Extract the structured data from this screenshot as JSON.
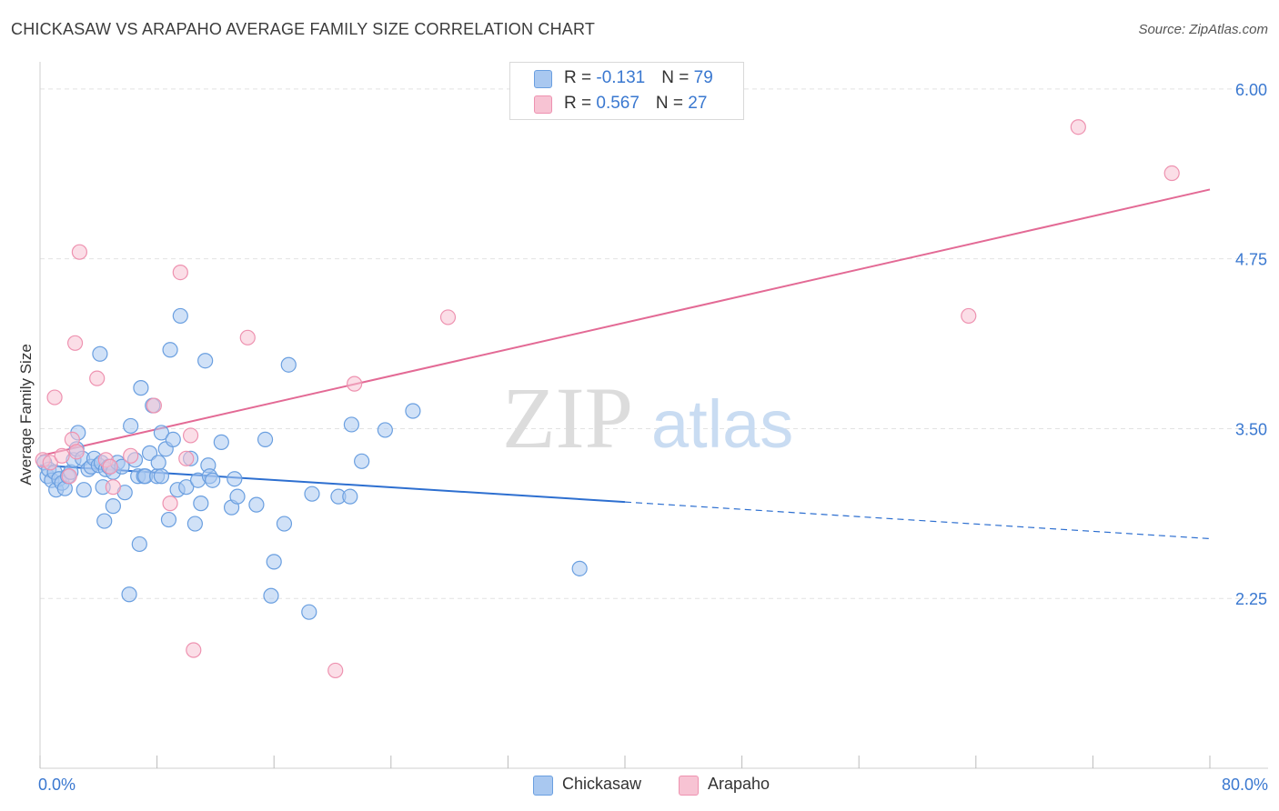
{
  "title": "CHICKASAW VS ARAPAHO AVERAGE FAMILY SIZE CORRELATION CHART",
  "source": "Source: ZipAtlas.com",
  "watermark": {
    "zip": "ZIP",
    "atlas": "atlas"
  },
  "legend": {
    "rows": [
      {
        "r_label": "R = ",
        "r_value": "-0.131",
        "n_label": "N = ",
        "n_value": "79"
      },
      {
        "r_label": "R = ",
        "r_value": "0.567",
        "n_label": "N = ",
        "n_value": "27"
      }
    ]
  },
  "bottom_legend": {
    "chickasaw": "Chickasaw",
    "arapaho": "Arapaho"
  },
  "colors": {
    "chickasaw_fill": "#a9c8f0",
    "chickasaw_stroke": "#6a9fe0",
    "chickasaw_line": "#2d6fd0",
    "arapaho_fill": "#f7c3d3",
    "arapaho_stroke": "#ee92b0",
    "arapaho_line": "#e36a95",
    "tick_label": "#3a78d0",
    "grid": "#e2e2e2"
  },
  "chart_data": {
    "type": "scatter",
    "title": "CHICKASAW VS ARAPAHO AVERAGE FAMILY SIZE CORRELATION CHART",
    "xlabel": "",
    "ylabel": "Average Family Size",
    "xlim": [
      0,
      80
    ],
    "ylim": [
      1.0,
      6.2
    ],
    "x_tick_labels": [
      "0.0%",
      "80.0%"
    ],
    "y_ticks": [
      6.0,
      4.75,
      3.5,
      2.25
    ],
    "y_tick_labels": [
      "6.00",
      "4.75",
      "3.50",
      "2.25"
    ],
    "grid": true,
    "legend_position": "top-center",
    "series": [
      {
        "name": "Chickasaw",
        "r": -0.131,
        "n": 79,
        "trend": {
          "x0": 0,
          "y0": 3.23,
          "x_solid_end": 40,
          "y_solid_end": 2.96,
          "x1": 80,
          "y1": 2.69
        },
        "points": [
          [
            0.3,
            3.25
          ],
          [
            0.5,
            3.15
          ],
          [
            0.6,
            3.2
          ],
          [
            0.8,
            3.12
          ],
          [
            1.0,
            3.18
          ],
          [
            1.1,
            3.05
          ],
          [
            1.3,
            3.13
          ],
          [
            1.5,
            3.1
          ],
          [
            1.7,
            3.06
          ],
          [
            1.9,
            3.15
          ],
          [
            2.1,
            3.18
          ],
          [
            2.3,
            3.27
          ],
          [
            2.5,
            3.35
          ],
          [
            2.6,
            3.47
          ],
          [
            2.9,
            3.28
          ],
          [
            3.0,
            3.05
          ],
          [
            3.3,
            3.2
          ],
          [
            3.5,
            3.22
          ],
          [
            3.7,
            3.28
          ],
          [
            4.0,
            3.23
          ],
          [
            4.2,
            3.25
          ],
          [
            4.4,
            2.82
          ],
          [
            4.5,
            3.2
          ],
          [
            4.1,
            4.05
          ],
          [
            4.3,
            3.07
          ],
          [
            4.7,
            3.22
          ],
          [
            5.0,
            3.18
          ],
          [
            5.0,
            2.93
          ],
          [
            5.3,
            3.25
          ],
          [
            5.6,
            3.22
          ],
          [
            5.8,
            3.03
          ],
          [
            6.1,
            2.28
          ],
          [
            6.2,
            3.52
          ],
          [
            6.5,
            3.27
          ],
          [
            6.7,
            3.15
          ],
          [
            6.8,
            2.65
          ],
          [
            6.9,
            3.8
          ],
          [
            7.1,
            3.15
          ],
          [
            7.2,
            3.15
          ],
          [
            7.5,
            3.32
          ],
          [
            7.7,
            3.67
          ],
          [
            8.0,
            3.15
          ],
          [
            8.1,
            3.25
          ],
          [
            8.3,
            3.47
          ],
          [
            8.3,
            3.15
          ],
          [
            8.6,
            3.35
          ],
          [
            8.8,
            2.83
          ],
          [
            8.9,
            4.08
          ],
          [
            9.1,
            3.42
          ],
          [
            9.4,
            3.05
          ],
          [
            9.6,
            4.33
          ],
          [
            10.0,
            3.07
          ],
          [
            10.3,
            3.28
          ],
          [
            10.6,
            2.8
          ],
          [
            10.8,
            3.12
          ],
          [
            11.0,
            2.95
          ],
          [
            11.3,
            4.0
          ],
          [
            11.5,
            3.23
          ],
          [
            11.6,
            3.15
          ],
          [
            11.8,
            3.12
          ],
          [
            12.4,
            3.4
          ],
          [
            13.1,
            2.92
          ],
          [
            13.3,
            3.13
          ],
          [
            13.5,
            3.0
          ],
          [
            14.8,
            2.94
          ],
          [
            15.4,
            3.42
          ],
          [
            15.8,
            2.27
          ],
          [
            16.0,
            2.52
          ],
          [
            16.7,
            2.8
          ],
          [
            17.0,
            3.97
          ],
          [
            18.4,
            2.15
          ],
          [
            18.6,
            3.02
          ],
          [
            20.4,
            3.0
          ],
          [
            21.2,
            3.0
          ],
          [
            21.3,
            3.53
          ],
          [
            22.0,
            3.26
          ],
          [
            23.6,
            3.49
          ],
          [
            25.5,
            3.63
          ],
          [
            36.9,
            2.47
          ]
        ]
      },
      {
        "name": "Arapaho",
        "r": 0.567,
        "n": 27,
        "trend": {
          "x0": 0,
          "y0": 3.3,
          "x1": 80,
          "y1": 5.26
        },
        "points": [
          [
            0.2,
            3.27
          ],
          [
            0.7,
            3.25
          ],
          [
            1.0,
            3.73
          ],
          [
            1.5,
            3.3
          ],
          [
            2.0,
            3.15
          ],
          [
            2.2,
            3.42
          ],
          [
            2.5,
            3.33
          ],
          [
            2.4,
            4.13
          ],
          [
            2.7,
            4.8
          ],
          [
            3.9,
            3.87
          ],
          [
            4.5,
            3.27
          ],
          [
            4.8,
            3.22
          ],
          [
            5.0,
            3.07
          ],
          [
            6.2,
            3.3
          ],
          [
            7.8,
            3.67
          ],
          [
            8.9,
            2.95
          ],
          [
            9.6,
            4.65
          ],
          [
            10.0,
            3.28
          ],
          [
            10.3,
            3.45
          ],
          [
            10.5,
            1.87
          ],
          [
            14.2,
            4.17
          ],
          [
            20.2,
            1.72
          ],
          [
            21.5,
            3.83
          ],
          [
            27.9,
            4.32
          ],
          [
            63.5,
            4.33
          ],
          [
            71.0,
            5.72
          ],
          [
            77.4,
            5.38
          ]
        ]
      }
    ]
  }
}
